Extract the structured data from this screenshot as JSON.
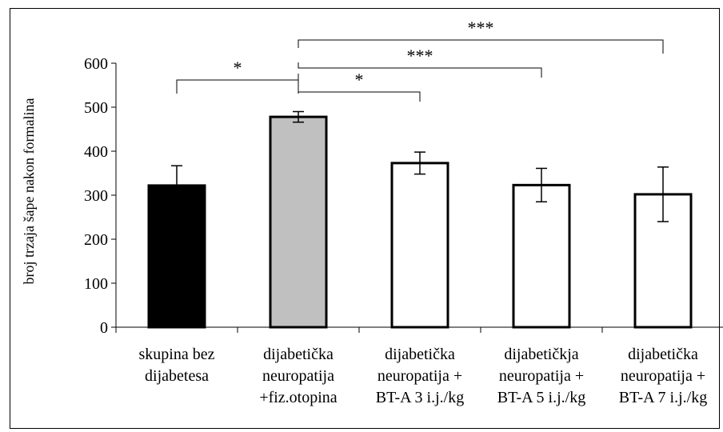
{
  "chart_data": {
    "type": "bar",
    "ylabel": "broj trzaja šape nakon formalina",
    "ylim": [
      0,
      600
    ],
    "yticks": [
      0,
      100,
      200,
      300,
      400,
      500,
      600
    ],
    "categories": [
      [
        "skupina bez",
        "dijabetesa"
      ],
      [
        "dijabetička",
        "neuropatija",
        "+fiz.otopina"
      ],
      [
        "dijabetička",
        "neuropatija +",
        "BT-A 3 i.j./kg"
      ],
      [
        "dijabetičkja",
        "neuropatija +",
        "BT-A 5 i.j./kg"
      ],
      [
        "dijabetička",
        "neuropatija +",
        "BT-A 7 i.j./kg"
      ]
    ],
    "values": [
      322,
      478,
      373,
      323,
      302
    ],
    "error_low": [
      45,
      12,
      25,
      38,
      62
    ],
    "error_high": [
      45,
      12,
      25,
      38,
      62
    ],
    "bar_colors": [
      "#000000",
      "#c0c0c0",
      "#ffffff",
      "#ffffff",
      "#ffffff"
    ],
    "significance": [
      {
        "from": 0,
        "to": 1,
        "label": "*"
      },
      {
        "from": 1,
        "to": 2,
        "label": "*"
      },
      {
        "from": 1,
        "to": 3,
        "label": "***"
      },
      {
        "from": 1,
        "to": 4,
        "label": "***"
      }
    ]
  }
}
